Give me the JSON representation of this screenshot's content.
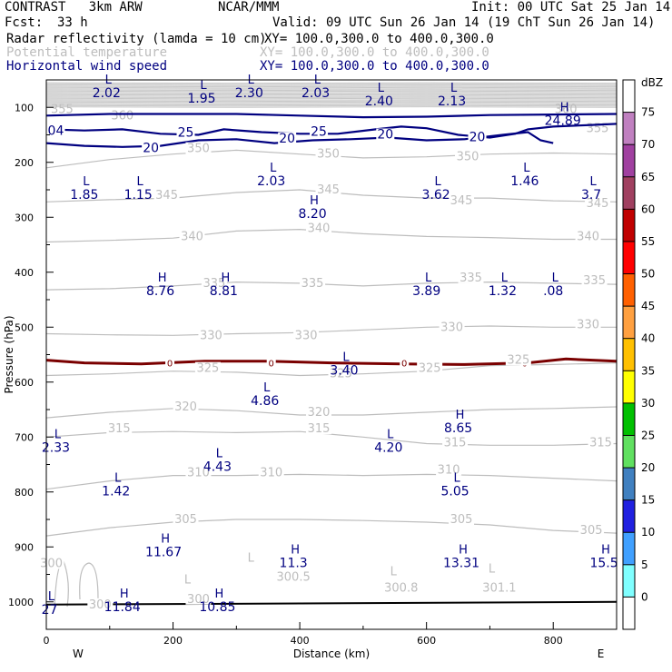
{
  "header": {
    "model": "CONTRAST   3km ARW",
    "source": "NCAR/MMM",
    "init": "Init: 00 UTC Sat 25 Jan 14",
    "fcst_label": "Fcst:",
    "fcst_value": "33 h",
    "valid": "Valid: 09 UTC Sun 26 Jan 14 (19 ChT Sun 26 Jan 14)",
    "fields": [
      {
        "name": "Radar reflectivity (lamda = 10 cm)",
        "xy": "XY= 100.0,300.0 to 400.0,300.0"
      },
      {
        "name": "Potential temperature",
        "xy": "XY= 100.0,300.0 to 400.0,300.0"
      },
      {
        "name": "Horizontal wind speed",
        "xy": "XY= 100.0,300.0 to 400.0,300.0"
      }
    ]
  },
  "chart_data": {
    "type": "cross-section",
    "xlabel": "Distance (km)",
    "ylabel": "Pressure (hPa)",
    "xlim": [
      0,
      900
    ],
    "ylim": [
      1050,
      50
    ],
    "x_ticks": [
      "0",
      "200",
      "400",
      "600",
      "800"
    ],
    "x_tick_values": [
      0,
      200,
      400,
      600,
      800
    ],
    "y_ticks": [
      "100",
      "200",
      "300",
      "400",
      "500",
      "600",
      "700",
      "800",
      "900",
      "1000"
    ],
    "y_tick_values": [
      100,
      200,
      300,
      400,
      500,
      600,
      700,
      800,
      900,
      1000
    ],
    "west_label": "W",
    "east_label": "E",
    "colorbar": {
      "unit": "dBZ",
      "levels": [
        "75",
        "70",
        "65",
        "60",
        "55",
        "50",
        "45",
        "40",
        "35",
        "30",
        "25",
        "20",
        "15",
        "10",
        "5",
        "0"
      ],
      "colors": [
        "#ffffff",
        "#c080c0",
        "#a040a0",
        "#a04060",
        "#c00000",
        "#ff0000",
        "#ff6000",
        "#ffa040",
        "#ffc000",
        "#ffff00",
        "#00c000",
        "#60e060",
        "#4080c0",
        "#2020e0",
        "#40a0ff",
        "#80ffff",
        "#ffffff"
      ]
    },
    "theta_labels": [
      {
        "text": "350",
        "x": 240,
        "p": 180
      },
      {
        "text": "350",
        "x": 445,
        "p": 190
      },
      {
        "text": "350",
        "x": 665,
        "p": 195
      },
      {
        "text": "345",
        "x": 445,
        "p": 255
      },
      {
        "text": "345",
        "x": 190,
        "p": 265
      },
      {
        "text": "345",
        "x": 655,
        "p": 275
      },
      {
        "text": "345",
        "x": 870,
        "p": 280
      },
      {
        "text": "340",
        "x": 430,
        "p": 325
      },
      {
        "text": "340",
        "x": 230,
        "p": 340
      },
      {
        "text": "340",
        "x": 855,
        "p": 340
      },
      {
        "text": "335",
        "x": 265,
        "p": 425
      },
      {
        "text": "335",
        "x": 420,
        "p": 425
      },
      {
        "text": "335",
        "x": 670,
        "p": 415
      },
      {
        "text": "335",
        "x": 865,
        "p": 420
      },
      {
        "text": "330",
        "x": 640,
        "p": 505
      },
      {
        "text": "330",
        "x": 855,
        "p": 500
      },
      {
        "text": "330",
        "x": 260,
        "p": 520
      },
      {
        "text": "330",
        "x": 410,
        "p": 520
      },
      {
        "text": "325",
        "x": 605,
        "p": 580
      },
      {
        "text": "325",
        "x": 745,
        "p": 565
      },
      {
        "text": "325",
        "x": 255,
        "p": 580
      },
      {
        "text": "325",
        "x": 465,
        "p": 590
      },
      {
        "text": "320",
        "x": 220,
        "p": 650
      },
      {
        "text": "320",
        "x": 430,
        "p": 660
      },
      {
        "text": "315",
        "x": 115,
        "p": 690
      },
      {
        "text": "315",
        "x": 430,
        "p": 690
      },
      {
        "text": "315",
        "x": 645,
        "p": 715
      },
      {
        "text": "315",
        "x": 875,
        "p": 715
      },
      {
        "text": "310",
        "x": 240,
        "p": 770
      },
      {
        "text": "310",
        "x": 355,
        "p": 770
      },
      {
        "text": "310",
        "x": 635,
        "p": 765
      },
      {
        "text": "305",
        "x": 220,
        "p": 855
      },
      {
        "text": "305",
        "x": 655,
        "p": 855
      },
      {
        "text": "305",
        "x": 860,
        "p": 875
      },
      {
        "text": "300.5",
        "x": 390,
        "p": 960
      },
      {
        "text": "300.8",
        "x": 560,
        "p": 980
      },
      {
        "text": "301.1",
        "x": 715,
        "p": 980
      },
      {
        "text": "300",
        "x": 240,
        "p": 1000
      },
      {
        "text": "300",
        "x": 85,
        "p": 1010
      },
      {
        "text": "300",
        "x": 8,
        "p": 935
      }
    ],
    "wind_contour_labels": [
      {
        "text": "25",
        "x": 220,
        "p": 152
      },
      {
        "text": "25",
        "x": 430,
        "p": 150
      },
      {
        "text": "20",
        "x": 165,
        "p": 180
      },
      {
        "text": "20",
        "x": 380,
        "p": 162
      },
      {
        "text": "20",
        "x": 535,
        "p": 155
      },
      {
        "text": "20",
        "x": 680,
        "p": 160
      },
      {
        "text": "04",
        "x": 15,
        "p": 148
      }
    ],
    "extrema": [
      {
        "kind": "L",
        "value": "2.02",
        "x": 95,
        "p": 65
      },
      {
        "kind": "L",
        "value": "1.95",
        "x": 245,
        "p": 75
      },
      {
        "kind": "L",
        "value": "2.30",
        "x": 320,
        "p": 65
      },
      {
        "kind": "L",
        "value": "2.03",
        "x": 425,
        "p": 65
      },
      {
        "kind": "L",
        "value": "2.40",
        "x": 525,
        "p": 80
      },
      {
        "kind": "L",
        "value": "2.13",
        "x": 640,
        "p": 80
      },
      {
        "kind": "H",
        "value": "24.89",
        "x": 815,
        "p": 115
      },
      {
        "kind": "L",
        "value": "1.85",
        "x": 60,
        "p": 250
      },
      {
        "kind": "L",
        "value": "1.15",
        "x": 145,
        "p": 250
      },
      {
        "kind": "L",
        "value": "2.03",
        "x": 355,
        "p": 225
      },
      {
        "kind": "L",
        "value": "3.62",
        "x": 615,
        "p": 250
      },
      {
        "kind": "L",
        "value": "1.46",
        "x": 755,
        "p": 225
      },
      {
        "kind": "L",
        "value": "3.7",
        "x": 860,
        "p": 250
      },
      {
        "kind": "H",
        "value": "8.20",
        "x": 420,
        "p": 285
      },
      {
        "kind": "H",
        "value": "8.76",
        "x": 180,
        "p": 425
      },
      {
        "kind": "H",
        "value": "8.81",
        "x": 280,
        "p": 425
      },
      {
        "kind": "L",
        "value": "3.89",
        "x": 600,
        "p": 425
      },
      {
        "kind": "L",
        "value": "1.32",
        "x": 720,
        "p": 425
      },
      {
        "kind": "L",
        "value": ".08",
        "x": 800,
        "p": 425
      },
      {
        "kind": "L",
        "value": "3.40",
        "x": 470,
        "p": 570
      },
      {
        "kind": "L",
        "value": "4.86",
        "x": 345,
        "p": 625
      },
      {
        "kind": "H",
        "value": "8.65",
        "x": 650,
        "p": 675
      },
      {
        "kind": "L",
        "value": "2.33",
        "x": 15,
        "p": 710
      },
      {
        "kind": "L",
        "value": "4.20",
        "x": 540,
        "p": 710
      },
      {
        "kind": "L",
        "value": "4.43",
        "x": 270,
        "p": 745
      },
      {
        "kind": "L",
        "value": "1.42",
        "x": 110,
        "p": 790
      },
      {
        "kind": "L",
        "value": "5.05",
        "x": 645,
        "p": 790
      },
      {
        "kind": "H",
        "value": "11.67",
        "x": 185,
        "p": 900
      },
      {
        "kind": "H",
        "value": "11.3",
        "x": 390,
        "p": 920
      },
      {
        "kind": "H",
        "value": "13.31",
        "x": 655,
        "p": 920
      },
      {
        "kind": "H",
        "value": "15.5",
        "x": 880,
        "p": 920
      },
      {
        "kind": "H",
        "value": "11.84",
        "x": 120,
        "p": 1000
      },
      {
        "kind": "H",
        "value": "10.85",
        "x": 270,
        "p": 1000
      },
      {
        "kind": "L",
        "value": "",
        "x": 220,
        "p": 975
      },
      {
        "kind": "L",
        "value": "",
        "x": 320,
        "p": 935
      },
      {
        "kind": "L",
        "value": "",
        "x": 545,
        "p": 960
      },
      {
        "kind": "L",
        "value": "",
        "x": 700,
        "p": 955
      },
      {
        "kind": "L",
        "value": "27",
        "x": 5,
        "p": 1005
      }
    ],
    "freezing_line": {
      "label": "0",
      "points": [
        [
          0,
          560
        ],
        [
          60,
          565
        ],
        [
          150,
          567
        ],
        [
          250,
          562
        ],
        [
          350,
          562
        ],
        [
          450,
          565
        ],
        [
          560,
          567
        ],
        [
          660,
          568
        ],
        [
          760,
          565
        ],
        [
          820,
          558
        ],
        [
          900,
          562
        ]
      ],
      "label_x": [
        195,
        355,
        565,
        755
      ]
    },
    "wind_contours": [
      {
        "level": 25,
        "points": [
          [
            0,
            115
          ],
          [
            100,
            112
          ],
          [
            200,
            112
          ],
          [
            300,
            112
          ],
          [
            400,
            115
          ],
          [
            500,
            118
          ],
          [
            600,
            117
          ],
          [
            700,
            114
          ],
          [
            800,
            113
          ],
          [
            900,
            112
          ]
        ]
      },
      {
        "level": 25,
        "points": [
          [
            0,
            140
          ],
          [
            60,
            142
          ],
          [
            120,
            140
          ],
          [
            180,
            148
          ],
          [
            240,
            150
          ],
          [
            280,
            140
          ],
          [
            340,
            145
          ],
          [
            400,
            148
          ],
          [
            460,
            148
          ],
          [
            520,
            140
          ],
          [
            560,
            135
          ],
          [
            600,
            138
          ],
          [
            650,
            150
          ],
          [
            700,
            155
          ],
          [
            740,
            148
          ],
          [
            760,
            140
          ],
          [
            800,
            135
          ],
          [
            860,
            132
          ],
          [
            900,
            130
          ]
        ]
      },
      {
        "level": 20,
        "points": [
          [
            0,
            165
          ],
          [
            60,
            170
          ],
          [
            120,
            172
          ],
          [
            180,
            170
          ],
          [
            240,
            160
          ],
          [
            300,
            158
          ],
          [
            360,
            165
          ],
          [
            420,
            160
          ],
          [
            480,
            158
          ],
          [
            540,
            155
          ],
          [
            600,
            160
          ],
          [
            660,
            158
          ],
          [
            720,
            150
          ],
          [
            760,
            145
          ],
          [
            780,
            160
          ],
          [
            800,
            165
          ]
        ]
      }
    ],
    "theta_lines": [
      {
        "values": [
          [
            0,
            210
          ],
          [
            100,
            195
          ],
          [
            200,
            185
          ],
          [
            300,
            178
          ],
          [
            400,
            185
          ],
          [
            500,
            192
          ],
          [
            600,
            190
          ],
          [
            700,
            185
          ],
          [
            800,
            183
          ],
          [
            900,
            185
          ]
        ]
      },
      {
        "values": [
          [
            0,
            272
          ],
          [
            100,
            268
          ],
          [
            200,
            265
          ],
          [
            300,
            255
          ],
          [
            400,
            250
          ],
          [
            500,
            260
          ],
          [
            600,
            265
          ],
          [
            700,
            265
          ],
          [
            800,
            270
          ],
          [
            900,
            272
          ]
        ]
      },
      {
        "values": [
          [
            0,
            345
          ],
          [
            100,
            342
          ],
          [
            200,
            338
          ],
          [
            300,
            325
          ],
          [
            400,
            322
          ],
          [
            500,
            330
          ],
          [
            600,
            335
          ],
          [
            700,
            337
          ],
          [
            800,
            340
          ],
          [
            900,
            340
          ]
        ]
      },
      {
        "values": [
          [
            0,
            432
          ],
          [
            100,
            430
          ],
          [
            200,
            425
          ],
          [
            300,
            418
          ],
          [
            400,
            420
          ],
          [
            500,
            425
          ],
          [
            600,
            420
          ],
          [
            700,
            418
          ],
          [
            800,
            420
          ],
          [
            900,
            422
          ]
        ]
      },
      {
        "values": [
          [
            0,
            512
          ],
          [
            100,
            514
          ],
          [
            200,
            515
          ],
          [
            300,
            512
          ],
          [
            400,
            510
          ],
          [
            500,
            505
          ],
          [
            600,
            500
          ],
          [
            700,
            498
          ],
          [
            800,
            500
          ],
          [
            900,
            500
          ]
        ]
      },
      {
        "values": [
          [
            0,
            588
          ],
          [
            100,
            585
          ],
          [
            200,
            580
          ],
          [
            300,
            582
          ],
          [
            400,
            588
          ],
          [
            500,
            585
          ],
          [
            600,
            580
          ],
          [
            700,
            570
          ],
          [
            800,
            568
          ],
          [
            900,
            565
          ]
        ]
      },
      {
        "values": [
          [
            0,
            665
          ],
          [
            100,
            655
          ],
          [
            200,
            648
          ],
          [
            300,
            652
          ],
          [
            400,
            660
          ],
          [
            500,
            660
          ],
          [
            600,
            655
          ],
          [
            700,
            650
          ],
          [
            800,
            648
          ],
          [
            900,
            645
          ]
        ]
      },
      {
        "values": [
          [
            0,
            700
          ],
          [
            100,
            692
          ],
          [
            200,
            690
          ],
          [
            300,
            692
          ],
          [
            400,
            690
          ],
          [
            500,
            700
          ],
          [
            600,
            712
          ],
          [
            700,
            715
          ],
          [
            800,
            715
          ],
          [
            900,
            712
          ]
        ]
      },
      {
        "values": [
          [
            0,
            795
          ],
          [
            100,
            780
          ],
          [
            200,
            770
          ],
          [
            300,
            770
          ],
          [
            400,
            768
          ],
          [
            500,
            770
          ],
          [
            600,
            768
          ],
          [
            700,
            770
          ],
          [
            800,
            775
          ],
          [
            900,
            780
          ]
        ]
      },
      {
        "values": [
          [
            0,
            880
          ],
          [
            100,
            865
          ],
          [
            200,
            855
          ],
          [
            300,
            850
          ],
          [
            400,
            850
          ],
          [
            500,
            852
          ],
          [
            600,
            855
          ],
          [
            700,
            860
          ],
          [
            800,
            870
          ],
          [
            900,
            875
          ]
        ]
      }
    ],
    "upper_theta_band": {
      "from_p": 55,
      "to_p": 100,
      "labels": [
        {
          "text": "355",
          "x": 25,
          "p": 110
        },
        {
          "text": "360",
          "x": 120,
          "p": 122
        },
        {
          "text": "355",
          "x": 870,
          "p": 145
        },
        {
          "text": "360",
          "x": 820,
          "p": 110
        }
      ]
    },
    "surface_line": [
      [
        0,
        1005
      ],
      [
        900,
        1000
      ]
    ]
  }
}
